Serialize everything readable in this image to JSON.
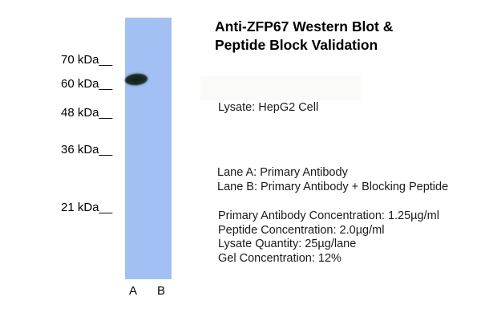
{
  "title": {
    "line1": "Anti-ZFP67 Western Blot &",
    "line2": "Peptide Block Validation"
  },
  "blot": {
    "markers": [
      "70 kDa__",
      "60 kDa__",
      "48 kDa__",
      "36 kDa__",
      "21 kDa__"
    ],
    "lanes": {
      "a": "A",
      "b": "B"
    }
  },
  "info": {
    "lysate": "Lysate: HepG2 Cell",
    "lane_a": "Lane A: Primary Antibody",
    "lane_b": "Lane B: Primary Antibody + Blocking Peptide",
    "details": [
      "Primary Antibody Concentration: 1.25µg/ml",
      "Peptide Concentration: 2.0µg/ml",
      "Lysate Quantity: 25µg/lane",
      "Gel Concentration: 12%"
    ]
  },
  "colors": {
    "membrane_blue": "#a2c0f4",
    "band_dark": "#1c2b24",
    "background": "#ffffff",
    "text": "#1a1a1a"
  }
}
